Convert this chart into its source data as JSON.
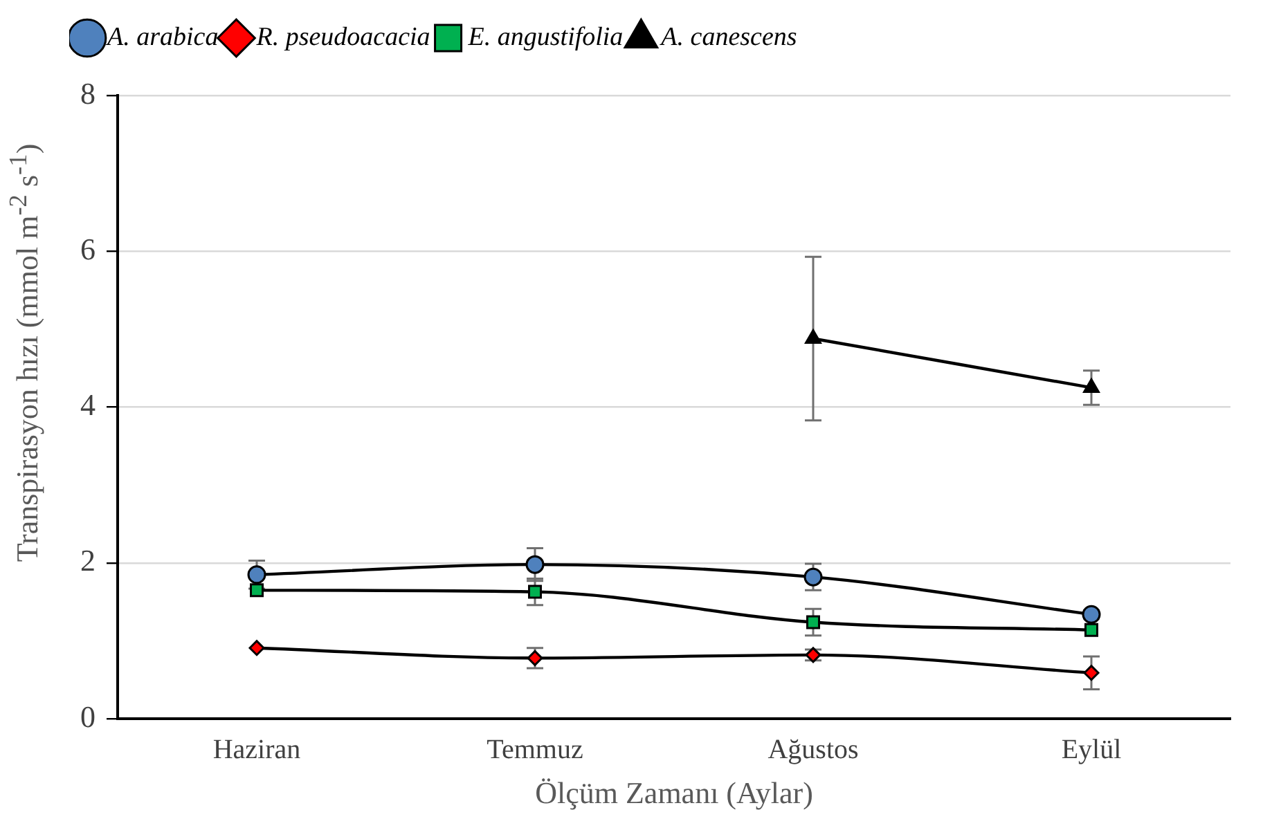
{
  "chart_data": {
    "type": "line",
    "xlabel": "Ölçüm Zamanı (Aylar)",
    "ylabel": "Transpirasyon hızı (mmol m$^{-2}$ s$^{-1}$)",
    "categories": [
      "Haziran",
      "Temmuz",
      "Ağustos",
      "Eylül"
    ],
    "ylim": [
      0,
      8
    ],
    "yticks": [
      0,
      2,
      4,
      6,
      8
    ],
    "grid": "y",
    "legend": "top left",
    "line_style": "solid",
    "series": [
      {
        "name": "A. arabica",
        "color": "#4f81bd",
        "marker": "circle",
        "values": [
          1.85,
          1.98,
          1.82,
          1.34
        ],
        "errors": [
          0.18,
          0.21,
          0.17,
          0.05
        ]
      },
      {
        "name": "R. pseudoacacia",
        "color": "#ff0000",
        "marker": "diamond",
        "values": [
          0.91,
          0.78,
          0.82,
          0.59
        ],
        "errors": [
          null,
          0.13,
          0.07,
          0.21
        ]
      },
      {
        "name": "E. angustifolia",
        "color": "#00b050",
        "marker": "square",
        "values": [
          1.65,
          1.63,
          1.24,
          1.14
        ],
        "errors": [
          null,
          0.17,
          0.17,
          null
        ]
      },
      {
        "name": "A. canescens",
        "color": "#000000",
        "marker": "triangle",
        "values": [
          null,
          null,
          4.88,
          4.25
        ],
        "errors": [
          null,
          null,
          1.05,
          0.22
        ]
      }
    ]
  }
}
